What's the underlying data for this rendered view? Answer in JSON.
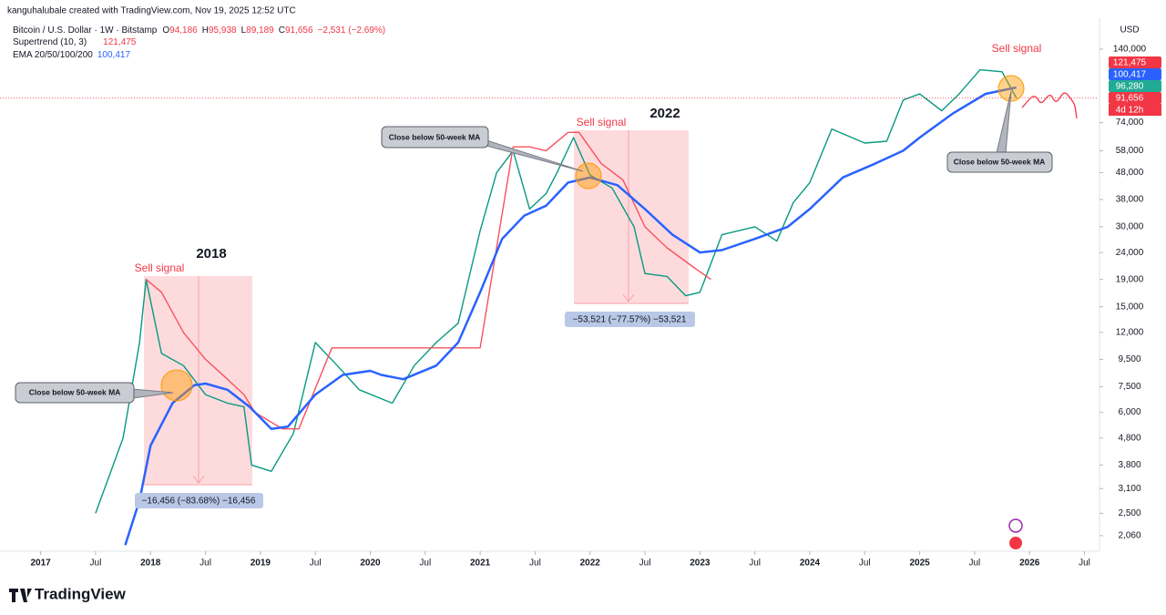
{
  "header": {
    "credit": "kanguhalubale created with TradingView.com, Nov 19, 2025 12:52 UTC"
  },
  "footer": {
    "brand": "TradingView"
  },
  "chart_data": {
    "type": "line",
    "log_scale": true,
    "grid": false,
    "currency": "USD",
    "ohlc": [
      {
        "key": "O",
        "label": "94,186"
      },
      {
        "key": "H",
        "label": "95,938"
      },
      {
        "key": "L",
        "label": "89,189"
      },
      {
        "key": "C",
        "label": "91,656"
      }
    ],
    "change": "−2,531 (−2.69%)",
    "xlim": [
      2016.63,
      2026.62
    ],
    "xticks": [
      {
        "value": 2017,
        "label": "2017"
      },
      {
        "value": 2017.5,
        "label": "Jul"
      },
      {
        "value": 2018,
        "label": "2018"
      },
      {
        "value": 2018.5,
        "label": "Jul"
      },
      {
        "value": 2019,
        "label": "2019"
      },
      {
        "value": 2019.5,
        "label": "Jul"
      },
      {
        "value": 2020,
        "label": "2020"
      },
      {
        "value": 2020.5,
        "label": "Jul"
      },
      {
        "value": 2021,
        "label": "2021"
      },
      {
        "value": 2021.5,
        "label": "Jul"
      },
      {
        "value": 2022,
        "label": "2022"
      },
      {
        "value": 2022.5,
        "label": "Jul"
      },
      {
        "value": 2023,
        "label": "2023"
      },
      {
        "value": 2023.5,
        "label": "Jul"
      },
      {
        "value": 2024,
        "label": "2024"
      },
      {
        "value": 2024.5,
        "label": "Jul"
      },
      {
        "value": 2025,
        "label": "2025"
      },
      {
        "value": 2025.5,
        "label": "Jul"
      },
      {
        "value": 2026,
        "label": "2026"
      },
      {
        "value": 2026.5,
        "label": "Jul"
      }
    ],
    "ylim": [
      1800,
      183000
    ],
    "yticks": [
      {
        "value": 2060,
        "label": "2,060"
      },
      {
        "value": 2500,
        "label": "2,500"
      },
      {
        "value": 3100,
        "label": "3,100"
      },
      {
        "value": 3800,
        "label": "3,800"
      },
      {
        "value": 4800,
        "label": "4,800"
      },
      {
        "value": 6000,
        "label": "6,000"
      },
      {
        "value": 7500,
        "label": "7,500"
      },
      {
        "value": 9500,
        "label": "9,500"
      },
      {
        "value": 12000,
        "label": "12,000"
      },
      {
        "value": 15000,
        "label": "15,000"
      },
      {
        "value": 19000,
        "label": "19,000"
      },
      {
        "value": 24000,
        "label": "24,000"
      },
      {
        "value": 30000,
        "label": "30,000"
      },
      {
        "value": 38000,
        "label": "38,000"
      },
      {
        "value": 48000,
        "label": "48,000"
      },
      {
        "value": 58000,
        "label": "58,000"
      },
      {
        "value": 74000,
        "label": "74,000"
      },
      {
        "value": 140000,
        "label": "140,000"
      }
    ],
    "series": [
      {
        "name": "Bitcoin / U.S. Dollar · 1W · Bitstamp",
        "color": "#089981",
        "x": [
          2017.5,
          2017.75,
          2017.9,
          2017.96,
          2018.1,
          2018.3,
          2018.5,
          2018.7,
          2018.85,
          2018.92,
          2019.1,
          2019.3,
          2019.5,
          2019.7,
          2019.9,
          2020.2,
          2020.4,
          2020.6,
          2020.8,
          2021.0,
          2021.15,
          2021.3,
          2021.45,
          2021.6,
          2021.7,
          2021.85,
          2022.0,
          2022.2,
          2022.4,
          2022.5,
          2022.7,
          2022.87,
          2023.0,
          2023.2,
          2023.5,
          2023.7,
          2023.85,
          2024.0,
          2024.2,
          2024.5,
          2024.7,
          2024.85,
          2025.0,
          2025.2,
          2025.35,
          2025.55,
          2025.75,
          2025.88
        ],
        "values": [
          2500,
          4800,
          11000,
          19000,
          10000,
          9000,
          7000,
          6500,
          6300,
          3800,
          3600,
          5000,
          11000,
          9000,
          7300,
          6500,
          9000,
          11000,
          13000,
          29000,
          48000,
          58000,
          35000,
          40000,
          48000,
          65000,
          47000,
          42000,
          30000,
          20000,
          19500,
          16500,
          17000,
          28000,
          30000,
          26500,
          37000,
          44000,
          70000,
          62000,
          63000,
          90000,
          95000,
          82000,
          94000,
          117000,
          115000,
          91656
        ]
      },
      {
        "name": "Supertrend (10, 3)",
        "legend_value": "121,475",
        "color": "#f7525f",
        "x": [
          2017.96,
          2018.1,
          2018.3,
          2018.5,
          2018.7,
          2018.85,
          2018.95,
          2019.2,
          2019.35,
          2019.65,
          2020.0,
          2020.3,
          2020.5,
          2020.75,
          2021.0,
          2021.3,
          2021.45,
          2021.6,
          2021.8,
          2021.9,
          2022.1,
          2022.3,
          2022.5,
          2022.7,
          2022.95,
          2023.1
        ],
        "values": [
          19000,
          17000,
          12000,
          9500,
          8000,
          7000,
          6000,
          5200,
          5200,
          10500,
          10500,
          10500,
          10500,
          10500,
          10500,
          60000,
          60000,
          58000,
          68000,
          68000,
          52000,
          45000,
          30000,
          25000,
          21000,
          19000
        ]
      },
      {
        "name": "EMA 20/50/100/200",
        "legend_value": "100,417",
        "color": "#2962ff",
        "x": [
          2017.77,
          2017.9,
          2018.0,
          2018.2,
          2018.4,
          2018.5,
          2018.7,
          2018.9,
          2019.1,
          2019.25,
          2019.5,
          2019.75,
          2020.0,
          2020.1,
          2020.3,
          2020.6,
          2020.8,
          2021.0,
          2021.2,
          2021.4,
          2021.6,
          2021.8,
          2022.0,
          2022.25,
          2022.5,
          2022.75,
          2023.0,
          2023.2,
          2023.5,
          2023.8,
          2024.0,
          2024.3,
          2024.6,
          2024.85,
          2025.0,
          2025.3,
          2025.6,
          2025.88
        ],
        "values": [
          1900,
          2800,
          4500,
          6500,
          7600,
          7700,
          7300,
          6300,
          5200,
          5300,
          7000,
          8300,
          8600,
          8300,
          8000,
          9000,
          11000,
          17000,
          27000,
          33000,
          36000,
          44000,
          46000,
          43000,
          35000,
          28000,
          24000,
          24500,
          27000,
          30000,
          35000,
          46000,
          52000,
          58000,
          65000,
          80000,
          95000,
          100417
        ]
      }
    ],
    "price_tags": [
      {
        "value": 121475,
        "label": "121,475",
        "color": "#f23645"
      },
      {
        "value": 100417,
        "label": "100,417",
        "color": "#2962ff"
      },
      {
        "value": 96280,
        "label": "96,280",
        "color": "#22ab94"
      },
      {
        "value": 91656,
        "label": "91,656",
        "color": "#f23645",
        "countdown": "4d 12h"
      }
    ],
    "annotations": {
      "sell_signals": [
        "Sell signal",
        "Sell signal",
        "Sell signal"
      ],
      "years": [
        "2018",
        "2022"
      ],
      "callouts": [
        "Close below 50-week MA",
        "Close below 50-week MA",
        "Close below 50-week MA"
      ],
      "measures": [
        "−16,456 (−83.68%) −16,456",
        "−53,521 (−77.57%) −53,521"
      ]
    }
  }
}
